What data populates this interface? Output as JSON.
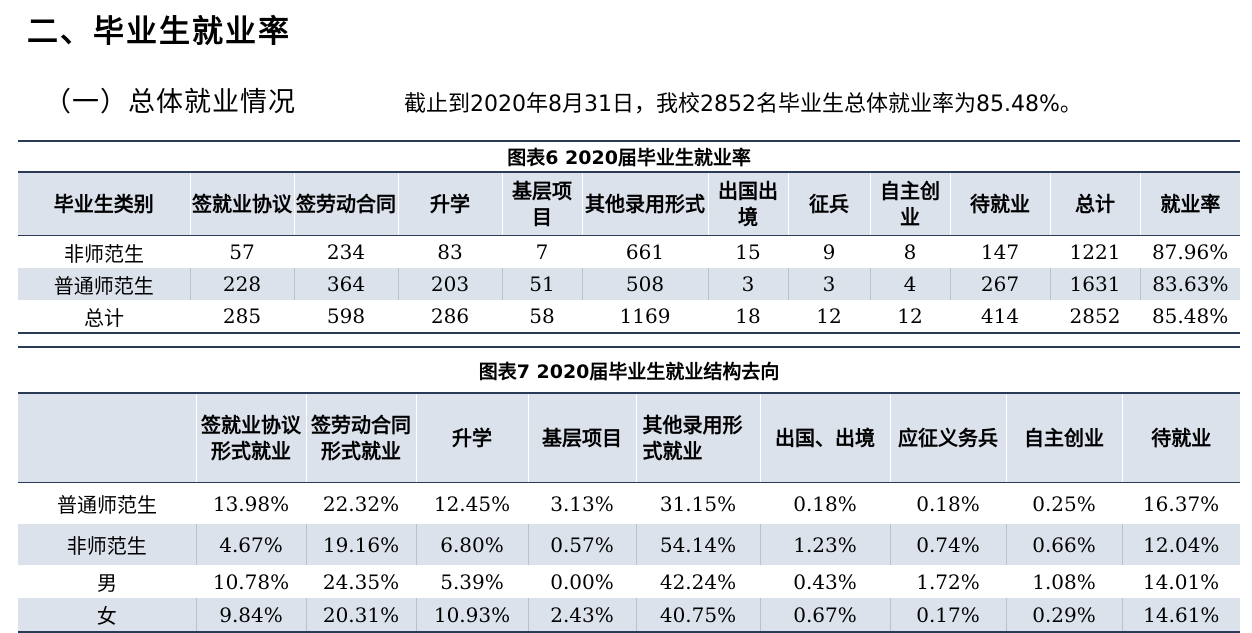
{
  "heading": "二、毕业生就业率",
  "subheading": "（一）总体就业情况",
  "summary": "截止到2020年8月31日，我校2852名毕业生总体就业率为85.48%。",
  "table6": {
    "caption": "图表6  2020届毕业生就业率",
    "headers": [
      "毕业生类别",
      "签就业协议",
      "签劳动合同",
      "升学",
      "基层项目",
      "其他录用形式",
      "出国出境",
      "征兵",
      "自主创业",
      "待就业",
      "总计",
      "就业率"
    ],
    "rows": [
      [
        "非师范生",
        "57",
        "234",
        "83",
        "7",
        "661",
        "15",
        "9",
        "8",
        "147",
        "1221",
        "87.96%"
      ],
      [
        "普通师范生",
        "228",
        "364",
        "203",
        "51",
        "508",
        "3",
        "3",
        "4",
        "267",
        "1631",
        "83.63%"
      ],
      [
        "总计",
        "285",
        "598",
        "286",
        "58",
        "1169",
        "18",
        "12",
        "12",
        "414",
        "2852",
        "85.48%"
      ]
    ]
  },
  "table7": {
    "caption": "图表7  2020届毕业生就业结构去向",
    "headers": [
      "",
      "签就业协议形式就业",
      "签劳动合同形式就业",
      "升学",
      "基层项目",
      "其他录用形式就业",
      "出国、出境",
      "应征义务兵",
      "自主创业",
      "待就业"
    ],
    "rows": [
      [
        "普通师范生",
        "13.98%",
        "22.32%",
        "12.45%",
        "3.13%",
        "31.15%",
        "0.18%",
        "0.18%",
        "0.25%",
        "16.37%"
      ],
      [
        "非师范生",
        "4.67%",
        "19.16%",
        "6.80%",
        "0.57%",
        "54.14%",
        "1.23%",
        "0.74%",
        "0.66%",
        "12.04%"
      ],
      [
        "男",
        "10.78%",
        "24.35%",
        "5.39%",
        "0.00%",
        "42.24%",
        "0.43%",
        "1.72%",
        "1.08%",
        "14.01%"
      ],
      [
        "女",
        "9.84%",
        "20.31%",
        "10.93%",
        "2.43%",
        "40.75%",
        "0.67%",
        "0.17%",
        "0.29%",
        "14.61%"
      ]
    ]
  }
}
